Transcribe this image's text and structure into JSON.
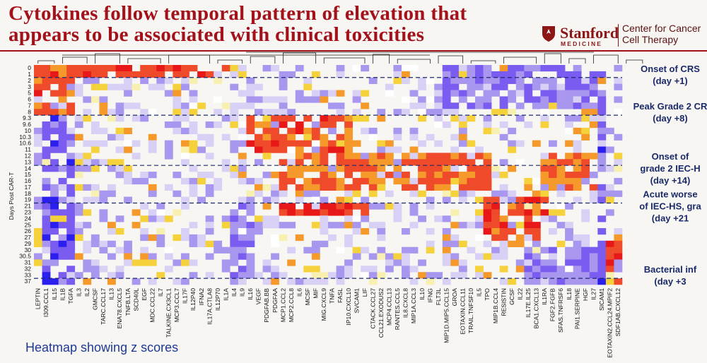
{
  "title": "Cytokines follow temporal pattern of elevation that appears to be associated with clinical toxicities",
  "logo": {
    "name": "Stanford",
    "sub": "MEDICINE",
    "center_line1": "Center for Cancer",
    "center_line2": "Cell Therapy"
  },
  "caption": "Heatmap showing z scores",
  "chart_data": {
    "type": "heatmap",
    "title": "Cytokines follow temporal pattern of elevation that appears to be associated with clinical toxicities",
    "ylabel": "Days Post CAR-T",
    "xlabel": "",
    "y_categories": [
      "0",
      "1",
      "2",
      "3",
      "5",
      "6",
      "7",
      "8",
      "9.3",
      "9.6",
      "10",
      "10.3",
      "10.6",
      "11",
      "12",
      "13",
      "14",
      "15",
      "16",
      "17",
      "18",
      "19",
      "21",
      "23",
      "24",
      "25",
      "26",
      "27",
      "29",
      "30",
      "30.5",
      "31",
      "32",
      "33",
      "37"
    ],
    "x_categories": [
      "LEPTIN",
      "I309.CCL1",
      "IL15",
      "IL1B",
      "TGFA",
      "IL3",
      "IL2",
      "GMCSF",
      "TARC.CCL17",
      "IL13",
      "ENA78.CXCL5",
      "TNFB.LTA",
      "SCD40L",
      "EGF",
      "MDC.CCL22",
      "IL7",
      "TALKINE.CX3CL1",
      "MCP3.CCL7",
      "IL17F",
      "IL12P40",
      "IFNA2",
      "IL17A.CTLA8",
      "IL12P70",
      "IL1A",
      "IL4",
      "IL9",
      "IL16",
      "VEGF",
      "PDGFAB.BB",
      "PDGFAA",
      "MCP1.CCL2",
      "MCP2.CCL8",
      "IL6",
      "MCSF",
      "MIF",
      "MIG.CXCL9",
      "TNFA",
      "FASL",
      "IP10.CXCL10",
      "SVCAM1",
      "LIF",
      "CTACK.CCL27",
      "CCL21.EXODUS2",
      "MCP4.CCL13",
      "RANTES.CCL5",
      "IL8.CXCL8",
      "MIP1A.CCL3",
      "IL10",
      "IFNG",
      "FLT3L",
      "MIP1D.MIP5.CCL15",
      "GROA",
      "EOTAXIN.CCL11",
      "TRAIL.TNFSF10",
      "IL5",
      "TPO",
      "MIP1B.CCL4",
      "RESISTIN",
      "GCSF",
      "IL22",
      "IL17E.IL25",
      "BCA1.CXCL13",
      "IL1RA",
      "FGF2.FGFB",
      "SFAS.TNFRSF6",
      "IL18",
      "PAI1.SERPINE",
      "HGF",
      "IL27",
      "SICAM1",
      "EOTAXIN2.CCL24.MPIF2",
      "SDF1AB.CXCL12"
    ],
    "annotations": [
      {
        "after_row": "1",
        "label_line1": "Onset of CRS",
        "label_line2": "(day +1)"
      },
      {
        "after_row": "8",
        "label_line1": "Peak Grade 2 CR",
        "label_line2": "(day +8)"
      },
      {
        "after_row": "13",
        "label_line1": "Onset of",
        "label_line2": "grade 2 IEC-H",
        "label_line3": "(day +14)"
      },
      {
        "after_row": "19",
        "label_line1": "Acute worse",
        "label_line2": "of IEC-HS, gra",
        "label_line3": "(day +21"
      },
      {
        "after_row": "33",
        "label_line1": "Bacterial inf",
        "label_line2": "(day +3"
      }
    ],
    "colorscale": [
      "#2b1ff0",
      "#7b5cf0",
      "#a996ee",
      "#d9d0f5",
      "#ffffff",
      "#f7f0b0",
      "#f5d23c",
      "#f59a2a",
      "#ef4a2a",
      "#e81818"
    ],
    "value_range": [
      -3,
      3
    ],
    "dendrogram": true,
    "grid": false
  }
}
